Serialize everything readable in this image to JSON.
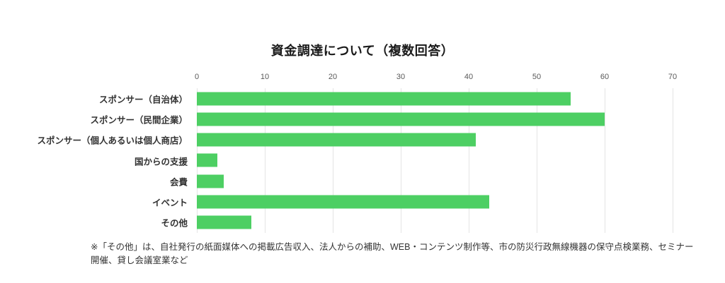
{
  "chart_data": {
    "type": "bar",
    "orientation": "horizontal",
    "title": "資金調達について（複数回答）",
    "categories": [
      "スポンサー（自治体）",
      "スポンサー（民間企業）",
      "スポンサー（個人あるいは個人商店）",
      "国からの支援",
      "会費",
      "イベント",
      "その他"
    ],
    "values": [
      55,
      60,
      41,
      3,
      4,
      43,
      8
    ],
    "xlabel": "",
    "ylabel": "",
    "xlim": [
      0,
      70
    ],
    "x_ticks": [
      0,
      10,
      20,
      30,
      40,
      50,
      60,
      70
    ],
    "grid": true,
    "legend": "none",
    "axis_position": "top",
    "bar_color": "#4DCF63",
    "gridline_color": "#e4e4e4"
  },
  "footnote": {
    "lines": [
      "※「その他」は、自社発行の紙面媒体への掲載広告収入、法人からの補助、WEB・コンテンツ制作等、市の防災行政無線機器の保守点検業務、セミナー",
      "開催、貸し会議室業など"
    ]
  }
}
